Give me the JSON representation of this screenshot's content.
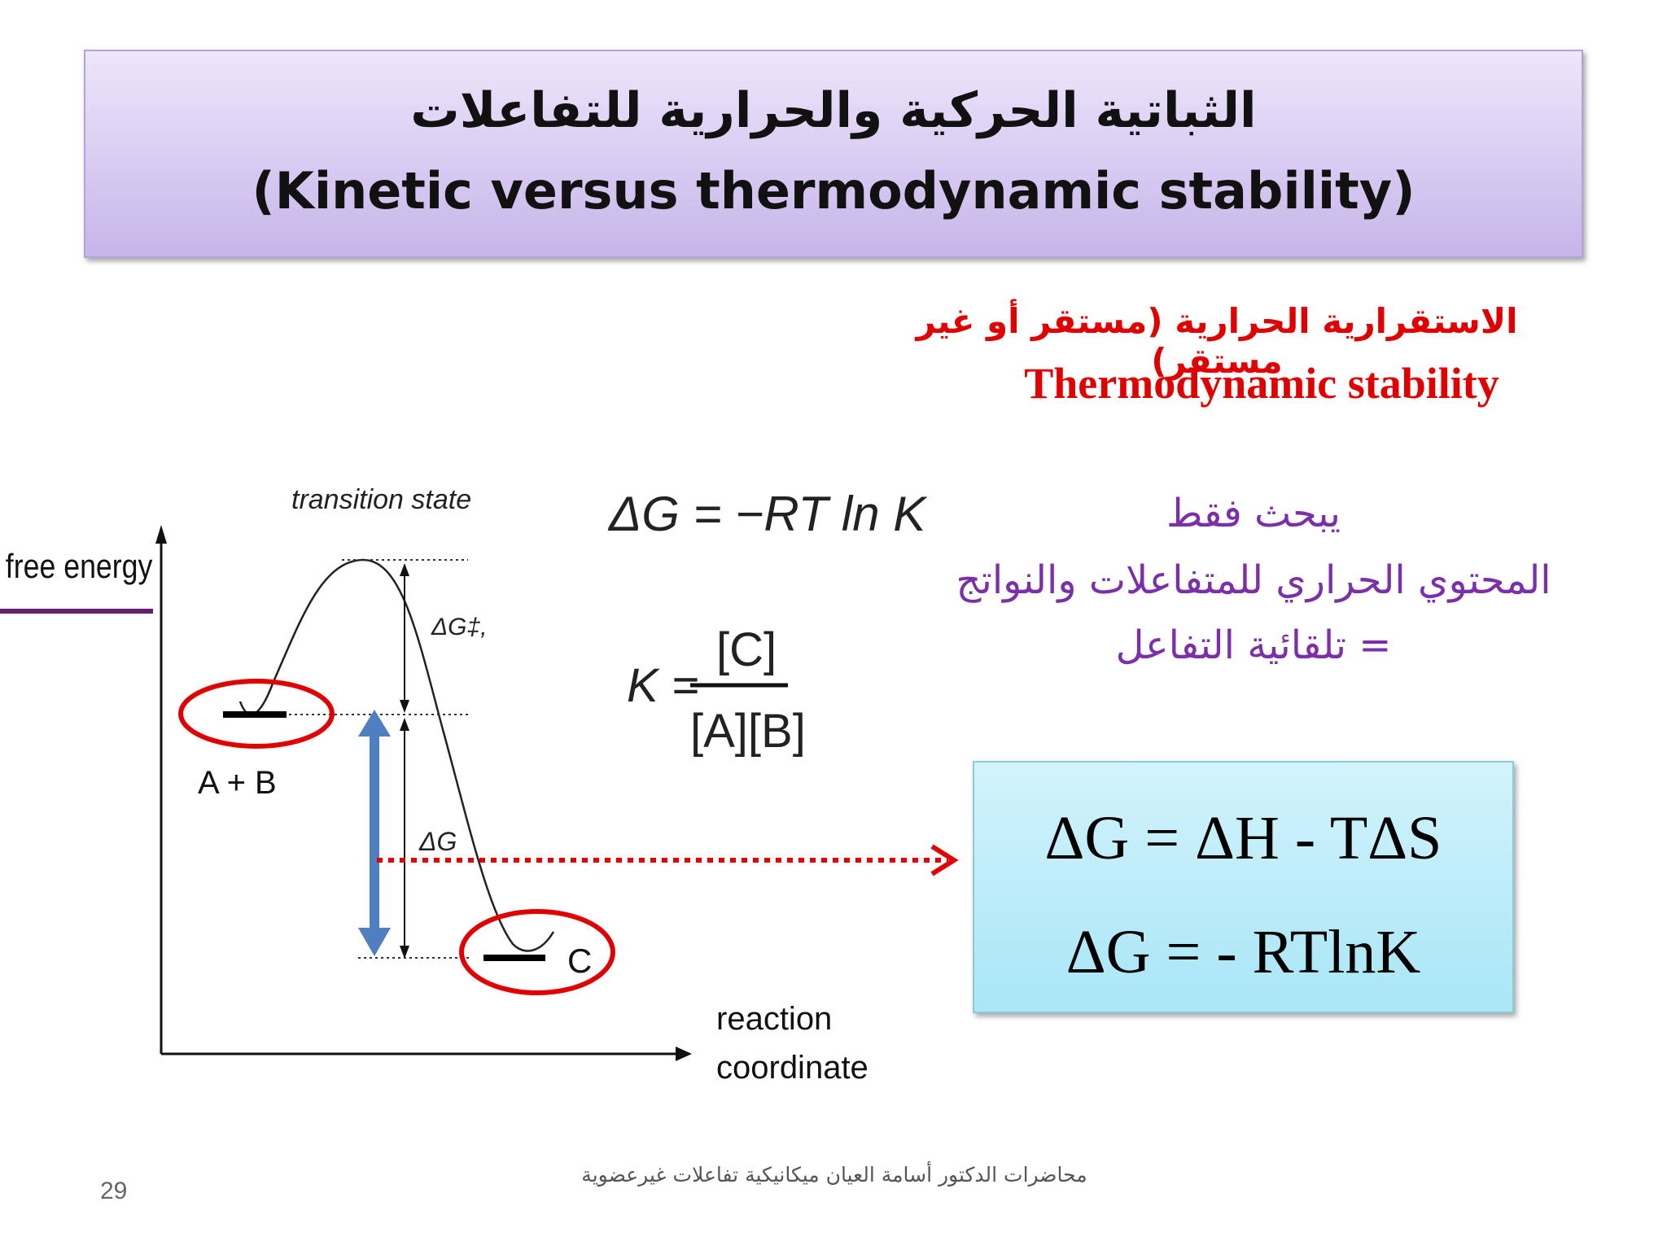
{
  "title": {
    "arabic": "الثباتية الحركية والحرارية للتفاعلات",
    "english": "(Kinetic versus thermodynamic stability)"
  },
  "thermo_heading": {
    "arabic": "الاستقرارية الحرارية (مستقر أو غير مستقر)",
    "english": "Thermodynamic stability"
  },
  "description": {
    "line1": "يبحث فقط",
    "line2": "المحتوي الحراري للمتفاعلات والنواتج",
    "line3": "= تلقائية التفاعل"
  },
  "diagram": {
    "y_axis_label": "free energy",
    "transition_label": "transition state",
    "activation_label": "ΔG‡,",
    "delta_g_label": "ΔG",
    "reactants_label": "A + B",
    "product_label": "C",
    "x_axis_label_line1": "reaction",
    "x_axis_label_line2": "coordinate"
  },
  "formulas": {
    "dg_rt": "ΔG = −RT ln K",
    "k_symbol": "K =",
    "k_numerator": "[C]",
    "k_denominator": "[A][B]"
  },
  "equations_box": {
    "eq1": "ΔG = ΔH - TΔS",
    "eq2": "ΔG = - RTlnK"
  },
  "footer": {
    "credit": "محاضرات الدكتور أسامة العيان ميكانيكية تفاعلات غيرعضوية",
    "page_number": "29"
  },
  "colors": {
    "title_bg": "#dcd0f3",
    "red_accent": "#e00000",
    "purple_text": "#7b2fa8",
    "blue_arrow": "#4f7fbf",
    "equation_bg": "#a9e6f6"
  }
}
